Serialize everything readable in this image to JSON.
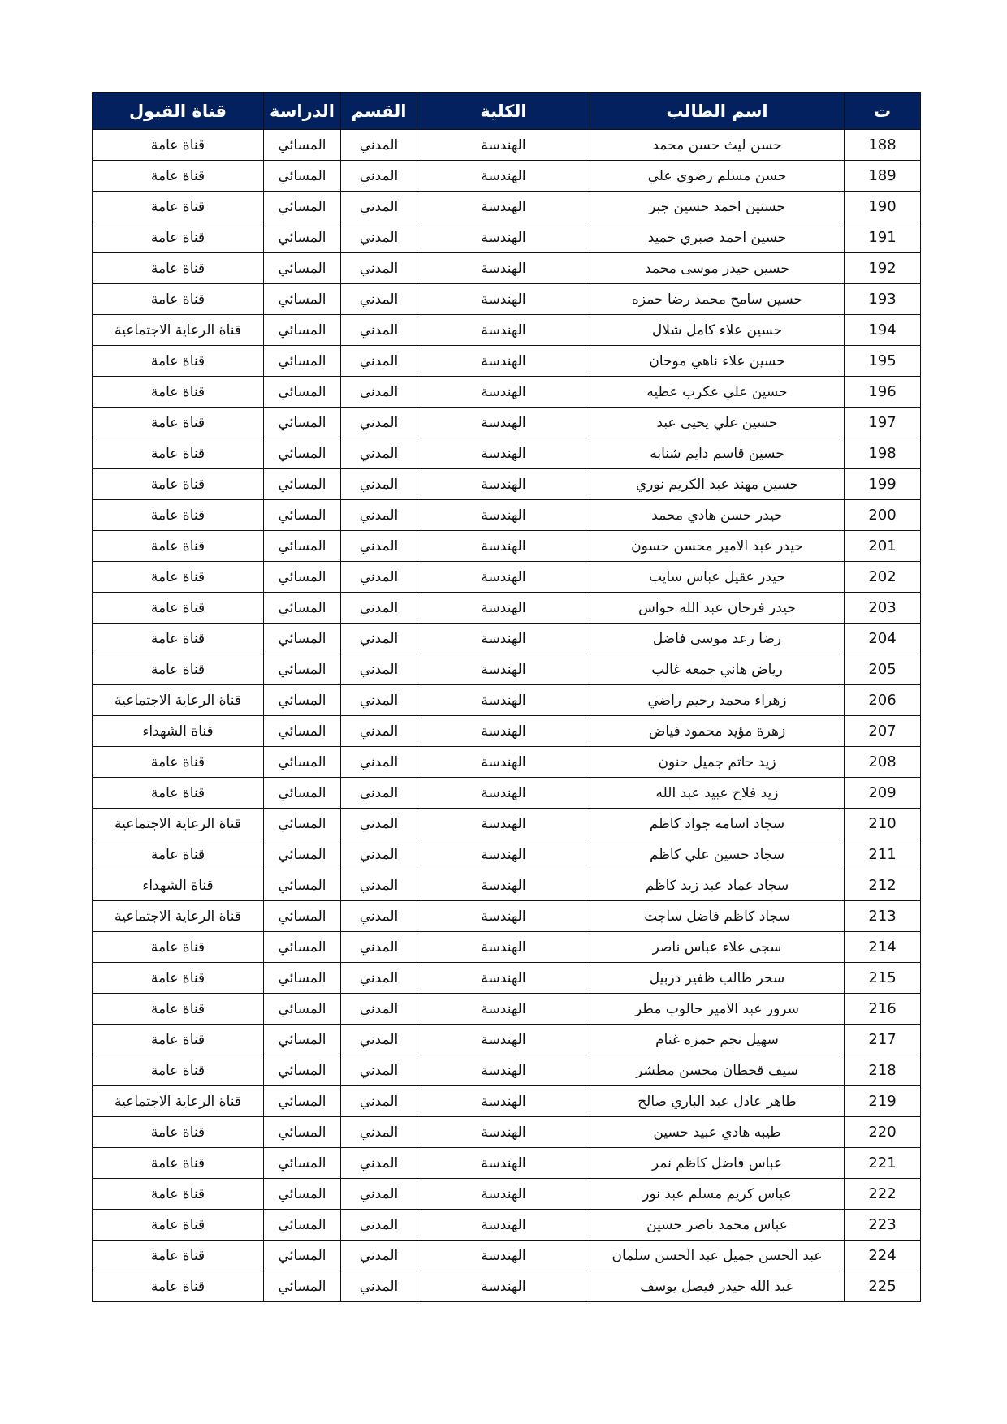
{
  "table": {
    "headers": [
      "ت",
      "اسم الطالب",
      "الكلية",
      "القسم",
      "الدراسة",
      "قناة القبول"
    ],
    "rows": [
      [
        "188",
        "حسن ليث حسن محمد",
        "الهندسة",
        "المدني",
        "المسائي",
        "قناة عامة"
      ],
      [
        "189",
        "حسن مسلم رضوي علي",
        "الهندسة",
        "المدني",
        "المسائي",
        "قناة عامة"
      ],
      [
        "190",
        "حسنين احمد حسين جبر",
        "الهندسة",
        "المدني",
        "المسائي",
        "قناة عامة"
      ],
      [
        "191",
        "حسين احمد صبري حميد",
        "الهندسة",
        "المدني",
        "المسائي",
        "قناة عامة"
      ],
      [
        "192",
        "حسين حيدر موسى محمد",
        "الهندسة",
        "المدني",
        "المسائي",
        "قناة عامة"
      ],
      [
        "193",
        "حسين سامح محمد رضا حمزه",
        "الهندسة",
        "المدني",
        "المسائي",
        "قناة عامة"
      ],
      [
        "194",
        "حسين علاء كامل شلال",
        "الهندسة",
        "المدني",
        "المسائي",
        "قناة الرعاية الاجتماعية"
      ],
      [
        "195",
        "حسين علاء ناهي موحان",
        "الهندسة",
        "المدني",
        "المسائي",
        "قناة عامة"
      ],
      [
        "196",
        "حسين علي عكرب عطيه",
        "الهندسة",
        "المدني",
        "المسائي",
        "قناة عامة"
      ],
      [
        "197",
        "حسين علي يحيى عبد",
        "الهندسة",
        "المدني",
        "المسائي",
        "قناة عامة"
      ],
      [
        "198",
        "حسين قاسم دايم شنابه",
        "الهندسة",
        "المدني",
        "المسائي",
        "قناة عامة"
      ],
      [
        "199",
        "حسين مهند عبد الكريم نوري",
        "الهندسة",
        "المدني",
        "المسائي",
        "قناة عامة"
      ],
      [
        "200",
        "حيدر حسن هادي محمد",
        "الهندسة",
        "المدني",
        "المسائي",
        "قناة عامة"
      ],
      [
        "201",
        "حيدر عبد الامير محسن حسون",
        "الهندسة",
        "المدني",
        "المسائي",
        "قناة عامة"
      ],
      [
        "202",
        "حيدر عقيل عباس سايب",
        "الهندسة",
        "المدني",
        "المسائي",
        "قناة عامة"
      ],
      [
        "203",
        "حيدر فرحان عبد الله حواس",
        "الهندسة",
        "المدني",
        "المسائي",
        "قناة عامة"
      ],
      [
        "204",
        "رضا رعد موسى فاضل",
        "الهندسة",
        "المدني",
        "المسائي",
        "قناة عامة"
      ],
      [
        "205",
        "رياض هاني جمعه غالب",
        "الهندسة",
        "المدني",
        "المسائي",
        "قناة عامة"
      ],
      [
        "206",
        "زهراء محمد رحيم راضي",
        "الهندسة",
        "المدني",
        "المسائي",
        "قناة الرعاية الاجتماعية"
      ],
      [
        "207",
        "زهرة مؤيد محمود فياض",
        "الهندسة",
        "المدني",
        "المسائي",
        "قناة الشهداء"
      ],
      [
        "208",
        "زيد حاتم جميل حنون",
        "الهندسة",
        "المدني",
        "المسائي",
        "قناة عامة"
      ],
      [
        "209",
        "زيد فلاح عبيد عبد الله",
        "الهندسة",
        "المدني",
        "المسائي",
        "قناة عامة"
      ],
      [
        "210",
        "سجاد اسامه جواد كاظم",
        "الهندسة",
        "المدني",
        "المسائي",
        "قناة الرعاية الاجتماعية"
      ],
      [
        "211",
        "سجاد حسين علي كاظم",
        "الهندسة",
        "المدني",
        "المسائي",
        "قناة عامة"
      ],
      [
        "212",
        "سجاد عماد عبد زيد كاظم",
        "الهندسة",
        "المدني",
        "المسائي",
        "قناة الشهداء"
      ],
      [
        "213",
        "سجاد كاظم فاضل ساجت",
        "الهندسة",
        "المدني",
        "المسائي",
        "قناة الرعاية الاجتماعية"
      ],
      [
        "214",
        "سجى علاء عباس ناصر",
        "الهندسة",
        "المدني",
        "المسائي",
        "قناة عامة"
      ],
      [
        "215",
        "سحر طالب ظفير دربيل",
        "الهندسة",
        "المدني",
        "المسائي",
        "قناة عامة"
      ],
      [
        "216",
        "سرور عبد الامير حالوب مطر",
        "الهندسة",
        "المدني",
        "المسائي",
        "قناة عامة"
      ],
      [
        "217",
        "سهيل نجم حمزه غنام",
        "الهندسة",
        "المدني",
        "المسائي",
        "قناة عامة"
      ],
      [
        "218",
        "سيف قحطان محسن مطشر",
        "الهندسة",
        "المدني",
        "المسائي",
        "قناة عامة"
      ],
      [
        "219",
        "طاهر عادل عبد الباري صالح",
        "الهندسة",
        "المدني",
        "المسائي",
        "قناة الرعاية الاجتماعية"
      ],
      [
        "220",
        "طيبه هادي عبيد حسين",
        "الهندسة",
        "المدني",
        "المسائي",
        "قناة عامة"
      ],
      [
        "221",
        "عباس فاضل كاظم نمر",
        "الهندسة",
        "المدني",
        "المسائي",
        "قناة عامة"
      ],
      [
        "222",
        "عباس كريم مسلم عبد نور",
        "الهندسة",
        "المدني",
        "المسائي",
        "قناة عامة"
      ],
      [
        "223",
        "عباس محمد ناصر حسين",
        "الهندسة",
        "المدني",
        "المسائي",
        "قناة عامة"
      ],
      [
        "224",
        "عبد الحسن جميل عبد الحسن سلمان",
        "الهندسة",
        "المدني",
        "المسائي",
        "قناة عامة"
      ],
      [
        "225",
        "عبد الله حيدر فيصل يوسف",
        "الهندسة",
        "المدني",
        "المسائي",
        "قناة عامة"
      ]
    ]
  },
  "colors": {
    "header_bg": "#03215e",
    "header_text": "#ffffff"
  }
}
